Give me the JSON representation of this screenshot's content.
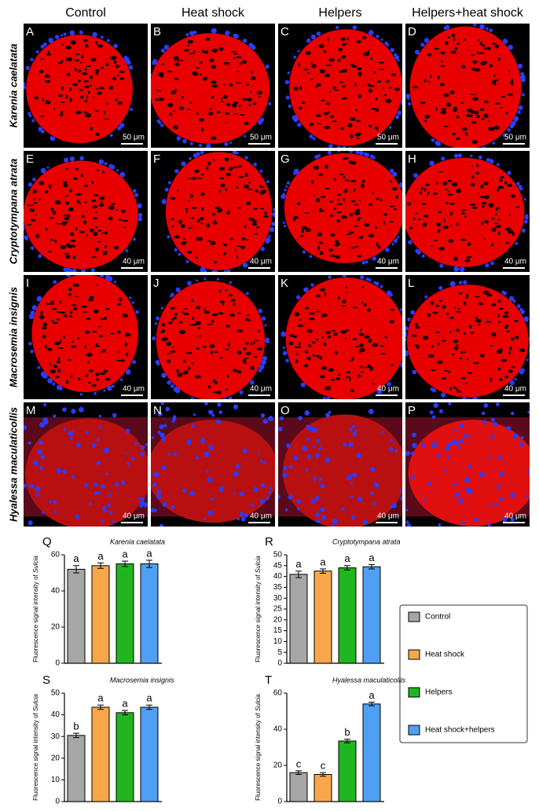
{
  "micrographs": {
    "columns": [
      "Control",
      "Heat shock",
      "Helpers",
      "Helpers+heat shock"
    ],
    "rows": [
      "Karenia caelatata",
      "Cryptotympana atrata",
      "Macrosemia insignis",
      "Hyalessa maculaticollis"
    ],
    "panels": [
      {
        "letter": "A",
        "scale": "50 μm"
      },
      {
        "letter": "B",
        "scale": "50 μm"
      },
      {
        "letter": "C",
        "scale": "50 μm"
      },
      {
        "letter": "D",
        "scale": "50 μm"
      },
      {
        "letter": "E",
        "scale": "40 μm"
      },
      {
        "letter": "F",
        "scale": "40 μm"
      },
      {
        "letter": "G",
        "scale": "40 μm"
      },
      {
        "letter": "H",
        "scale": "40 μm"
      },
      {
        "letter": "I",
        "scale": "40 μm"
      },
      {
        "letter": "J",
        "scale": "40 μm"
      },
      {
        "letter": "K",
        "scale": "40 μm"
      },
      {
        "letter": "L",
        "scale": "40 μm"
      },
      {
        "letter": "M",
        "scale": "40 μm"
      },
      {
        "letter": "N",
        "scale": "40 μm"
      },
      {
        "letter": "O",
        "scale": "40 μm"
      },
      {
        "letter": "P",
        "scale": "40 μm"
      }
    ]
  },
  "legend": {
    "labels": [
      "Control",
      "Heat shock",
      "Helpers",
      "Heat shock+helpers"
    ],
    "colors": [
      "#a6a6a6",
      "#f9a64b",
      "#21b521",
      "#4f9ff2"
    ]
  },
  "chart_data": [
    {
      "type": "bar",
      "panel": "Q",
      "title": "Karenia caelatata",
      "ylabel": "Fluorescence signal intensity of ",
      "ylabel_italic": "Sulcia",
      "values": [
        52,
        54,
        55,
        55
      ],
      "errors": [
        2,
        1.5,
        1.5,
        2
      ],
      "letters": [
        "a",
        "a",
        "a",
        "a"
      ],
      "ylim": [
        0,
        60
      ],
      "yticks": [
        0,
        20,
        40,
        60
      ]
    },
    {
      "type": "bar",
      "panel": "R",
      "title": "Cryptotympana atrata",
      "ylabel": "Fluorescence signal intensity of ",
      "ylabel_italic": "Sulcia",
      "values": [
        41,
        42.5,
        44,
        44.5
      ],
      "errors": [
        1.5,
        1,
        1,
        1
      ],
      "letters": [
        "a",
        "a",
        "a",
        "a"
      ],
      "ylim": [
        0,
        50
      ],
      "yticks": [
        0,
        5,
        10,
        15,
        20,
        25,
        30,
        35,
        40,
        45,
        50
      ]
    },
    {
      "type": "bar",
      "panel": "S",
      "title": "Macrosemia insignis",
      "ylabel": "Fluorescence signal intensity of ",
      "ylabel_italic": "Sulcia",
      "values": [
        30.5,
        43.5,
        41,
        43.5
      ],
      "errors": [
        1,
        1,
        1,
        1
      ],
      "letters": [
        "b",
        "a",
        "a",
        "a"
      ],
      "ylim": [
        0,
        50
      ],
      "yticks": [
        0,
        10,
        20,
        30,
        40,
        50
      ]
    },
    {
      "type": "bar",
      "panel": "T",
      "title": "Hyalessa maculaticollis",
      "ylabel": "Fluorescence signal intensity of ",
      "ylabel_italic": "Sulcia",
      "values": [
        16,
        15,
        33.5,
        54
      ],
      "errors": [
        1,
        1,
        1,
        1
      ],
      "letters": [
        "c",
        "c",
        "b",
        "a"
      ],
      "ylim": [
        0,
        60
      ],
      "yticks": [
        0,
        20,
        40,
        60
      ]
    }
  ]
}
